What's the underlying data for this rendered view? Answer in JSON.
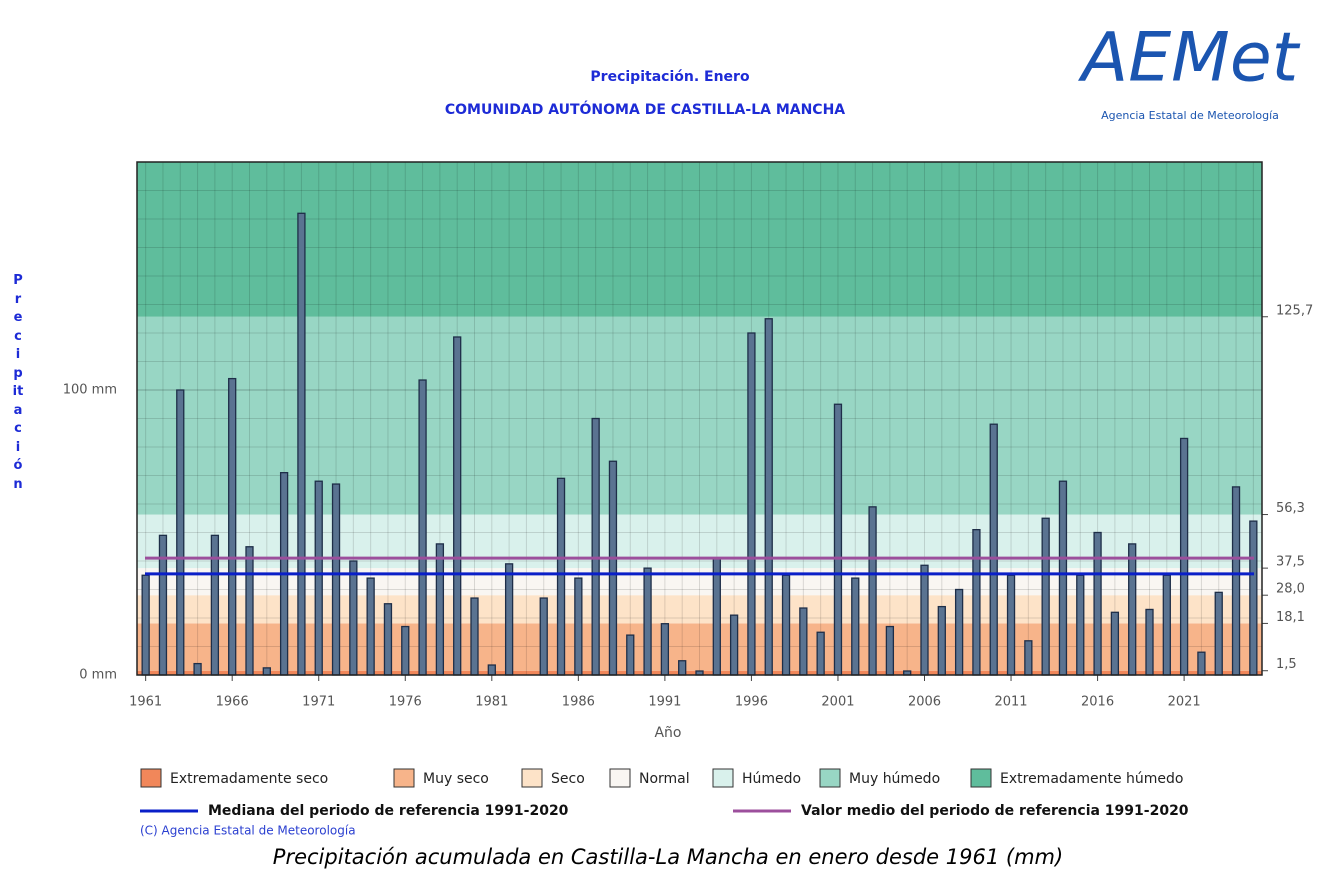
{
  "chart_data": {
    "type": "bar",
    "title": "Precipitación. Enero",
    "subtitle": "COMUNIDAD AUTÓNOMA DE CASTILLA-LA MANCHA",
    "logo": "AEMet",
    "logo_caption": "Agencia Estatal de Meteorología",
    "ylabel": "Precipitación",
    "xlabel": "Año",
    "copyright": "(C) Agencia Estatal de Meteorología",
    "caption": "Precipitación acumulada en Castilla-La Mancha en enero desde 1961 (mm)",
    "x": [
      1961,
      1962,
      1963,
      1964,
      1965,
      1966,
      1967,
      1968,
      1969,
      1970,
      1971,
      1972,
      1973,
      1974,
      1975,
      1976,
      1977,
      1978,
      1979,
      1980,
      1981,
      1982,
      1983,
      1984,
      1985,
      1986,
      1987,
      1988,
      1989,
      1990,
      1991,
      1992,
      1993,
      1994,
      1995,
      1996,
      1997,
      1998,
      1999,
      2000,
      2001,
      2002,
      2003,
      2004,
      2005,
      2006,
      2007,
      2008,
      2009,
      2010,
      2011,
      2012,
      2013,
      2014,
      2015,
      2016,
      2017,
      2018,
      2019,
      2020,
      2021,
      2022,
      2023,
      2024,
      2025
    ],
    "values": [
      35,
      49,
      100,
      4,
      49,
      104,
      45,
      2.5,
      71,
      162,
      68,
      67,
      40,
      34,
      25,
      17,
      103.5,
      46,
      118.6,
      27,
      3.5,
      39,
      0,
      27,
      69,
      34,
      90,
      75,
      14,
      37.5,
      18,
      5,
      1.4,
      41,
      21,
      120,
      125,
      35,
      23.5,
      15,
      95,
      34,
      59,
      17,
      1.4,
      38.5,
      24,
      30,
      51,
      88,
      35,
      12,
      55,
      68,
      35,
      50,
      22,
      46,
      23,
      35,
      83,
      8,
      29,
      66,
      54
    ],
    "color": "#5a7391",
    "edge_color": "#1e2e48",
    "xlim": [
      1960.5,
      2025.5
    ],
    "xticks": [
      1961,
      1966,
      1971,
      1976,
      1981,
      1986,
      1991,
      1996,
      2001,
      2006,
      2011,
      2016,
      2021
    ],
    "ylim": [
      0,
      180
    ],
    "yticks": [
      {
        "value": 0,
        "label": "0 mm"
      },
      {
        "value": 100,
        "label": "100 mm"
      }
    ],
    "minor_yticks": [
      10,
      20,
      30,
      40,
      50,
      60,
      70,
      80,
      90,
      110,
      120,
      130,
      140,
      150,
      160,
      170
    ],
    "y2ticks": [
      {
        "value": 1.5,
        "label": "1,5"
      },
      {
        "value": 18.1,
        "label": "18,1"
      },
      {
        "value": 28.0,
        "label": "28,0"
      },
      {
        "value": 37.5,
        "label": "37,5"
      },
      {
        "value": 56.3,
        "label": "56,3"
      },
      {
        "value": 125.7,
        "label": "125,7"
      }
    ],
    "grid": true,
    "bands": [
      {
        "name": "Extremadamente seco",
        "color": "#f1875a"
      },
      {
        "name": "Muy seco",
        "color": "#f7b48a"
      },
      {
        "name": "Seco",
        "color": "#fde3c8"
      },
      {
        "name": "Normal",
        "color": "#f9f6f2"
      },
      {
        "name": "Húmedo",
        "color": "#d9f1ec"
      },
      {
        "name": "Muy húmedo",
        "color": "#98d6c4"
      },
      {
        "name": "Extremadamente húmedo",
        "color": "#5fbd9c"
      }
    ],
    "reference_lines": [
      {
        "name": "Mediana del periodo de referencia 1991-2020",
        "color": "#0a1fc8",
        "value": 35.5
      },
      {
        "name": "Valor medio del periodo de referencia 1991-2020",
        "color": "#9c4f9c",
        "value": 41
      }
    ]
  }
}
